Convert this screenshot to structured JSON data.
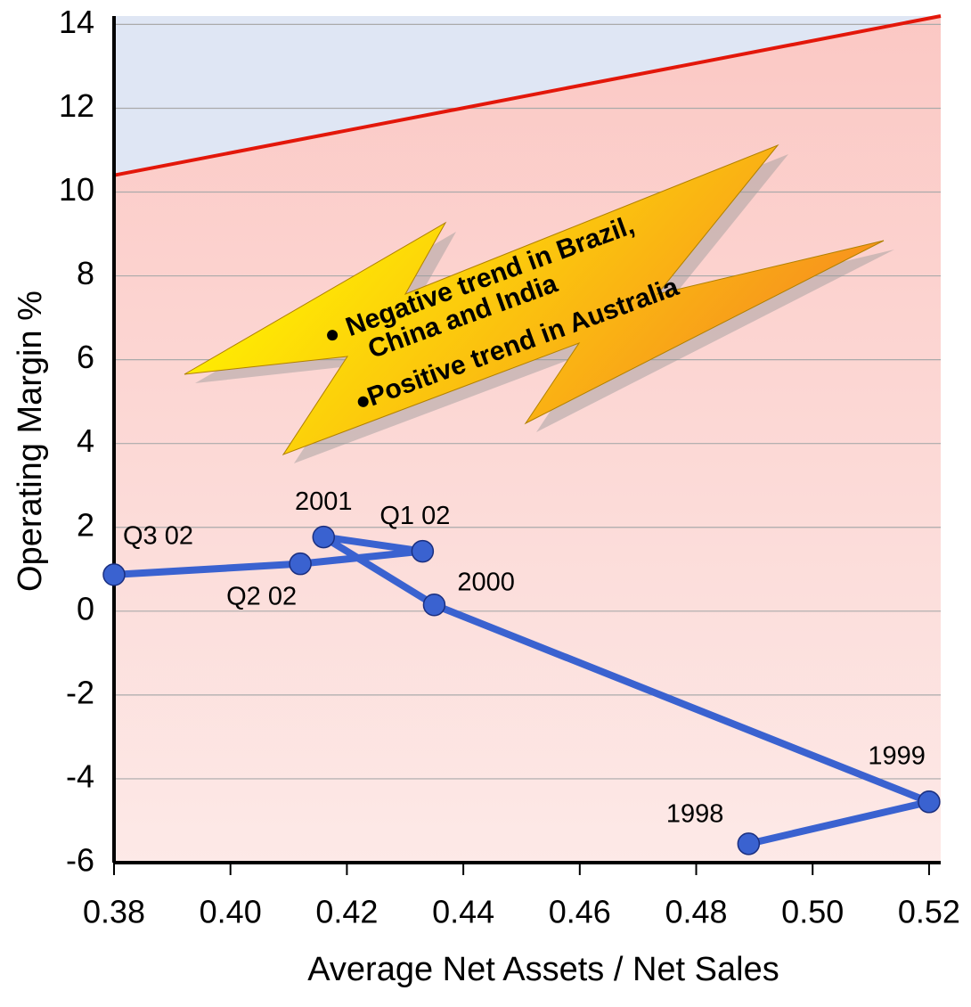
{
  "chart_data": {
    "type": "line",
    "xlabel": "Average Net Assets / Net Sales",
    "ylabel": "Operating Margin %",
    "xlim": [
      0.38,
      0.522
    ],
    "ylim": [
      -6,
      14.2
    ],
    "xticks": [
      0.38,
      {
        "value": 0.4,
        "label": "0.40"
      },
      0.42,
      0.44,
      0.46,
      0.48,
      {
        "value": 0.5,
        "label": "0.50"
      },
      0.52
    ],
    "yticks": [
      -6,
      -4,
      -2,
      0,
      2,
      4,
      6,
      8,
      10,
      12,
      14
    ],
    "grid": true,
    "series": [
      {
        "color": "#3a62d0",
        "x": [
          0.489,
          0.52,
          0.435,
          0.416,
          0.433,
          0.412,
          0.38
        ],
        "values": [
          -5.55,
          -4.55,
          0.15,
          1.77,
          1.43,
          1.13,
          0.87
        ],
        "labels": [
          "1998",
          "1999",
          "2000",
          "2001",
          "Q1 02",
          "Q2 02",
          "Q3 02"
        ]
      }
    ],
    "boundary": {
      "color": "#e3170a",
      "x": [
        0.38,
        0.522
      ],
      "values": [
        10.4,
        14.2
      ]
    },
    "annotations": [
      "Negative trend in Brazil,",
      "China and India",
      "Positive trend in Australia"
    ]
  }
}
